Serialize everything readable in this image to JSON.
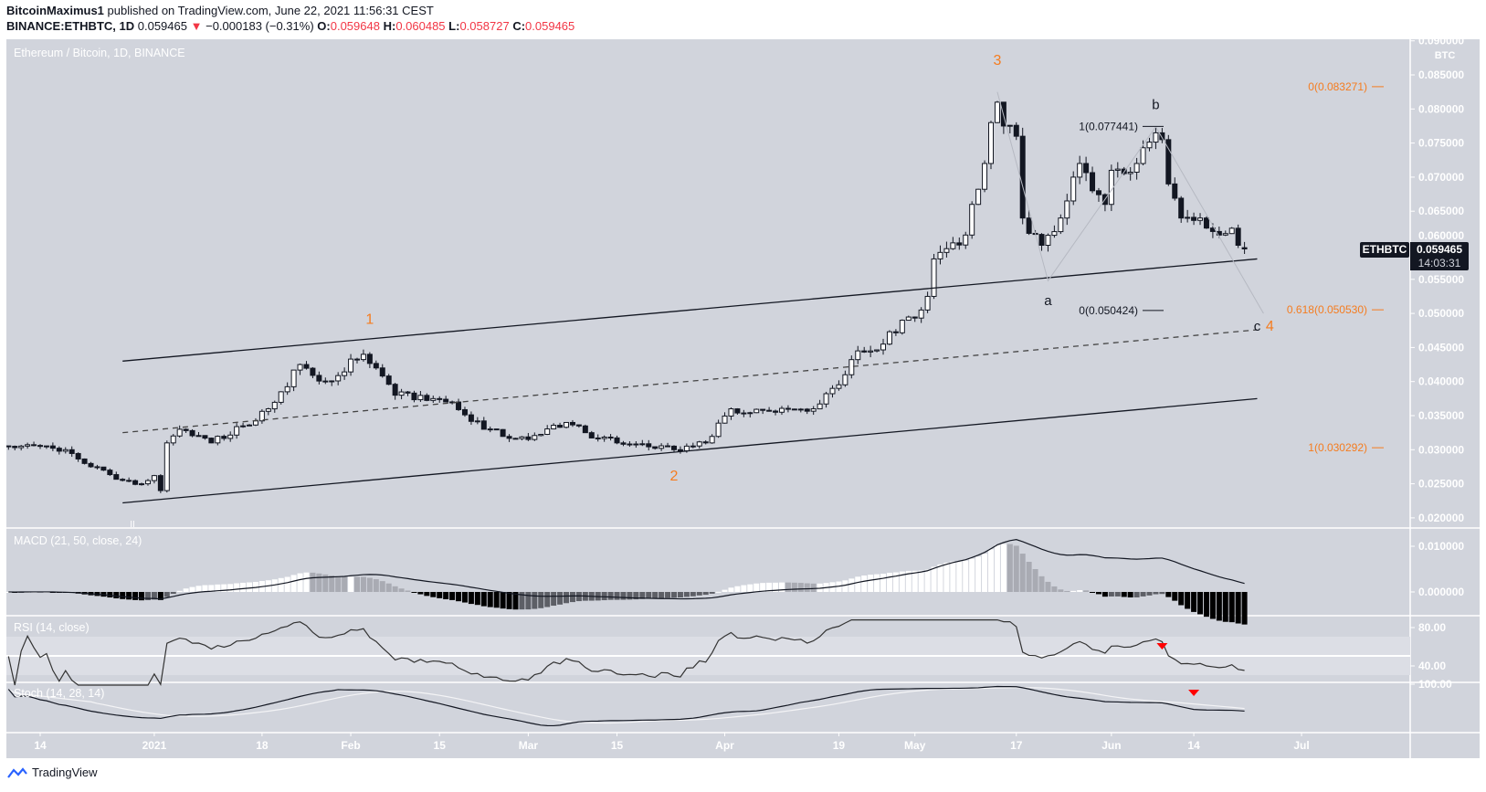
{
  "header": {
    "publisher": "BitcoinMaximus1",
    "published_text": "published on TradingView.com, June 22, 2021 11:56:31 CEST",
    "symbol": "BINANCE:ETHBTC, 1D",
    "last": "0.059465",
    "change": "−0.000183 (−0.31%)",
    "o_label": "O:",
    "o": "0.059648",
    "h_label": "H:",
    "h": "0.060485",
    "l_label": "L:",
    "l": "0.058727",
    "c_label": "C:",
    "c": "0.059465"
  },
  "colors": {
    "background": "#d1d4dc",
    "down": "#131722",
    "up": "#ffffff",
    "accent": "#f57c1f",
    "negative": "#f23645"
  },
  "panes": {
    "main_title": "Ethereum / Bitcoin, 1D, BINANCE",
    "macd_title": "MACD (21, 50, close, 24)",
    "rsi_title": "RSI (14, close)",
    "stoch_title": "Stoch (14, 28, 14)"
  },
  "price_label": {
    "symbol": "ETHBTC",
    "price": "0.059465",
    "countdown": "14:03:31"
  },
  "footer": {
    "brand": "TradingView"
  },
  "chart_data": {
    "type": "candlestick",
    "currency": "BTC",
    "y_ticks": [
      "0.090000",
      "0.085000",
      "0.080000",
      "0.075000",
      "0.070000",
      "0.065000",
      "0.060000",
      "0.055000",
      "0.050000",
      "0.045000",
      "0.040000",
      "0.035000",
      "0.030000",
      "0.025000",
      "0.020000"
    ],
    "ylim": [
      0.019,
      0.091
    ],
    "x_ticks": [
      {
        "date": "2020-12-14",
        "label": "14"
      },
      {
        "date": "2021-01-01",
        "label": "2021"
      },
      {
        "date": "2021-01-18",
        "label": "18"
      },
      {
        "date": "2021-02-01",
        "label": "Feb"
      },
      {
        "date": "2021-02-15",
        "label": "15"
      },
      {
        "date": "2021-03-01",
        "label": "Mar"
      },
      {
        "date": "2021-03-15",
        "label": "15"
      },
      {
        "date": "2021-04-01",
        "label": "Apr"
      },
      {
        "date": "2021-04-19",
        "label": "19"
      },
      {
        "date": "2021-05-01",
        "label": "May"
      },
      {
        "date": "2021-05-17",
        "label": "17"
      },
      {
        "date": "2021-06-01",
        "label": "Jun"
      },
      {
        "date": "2021-06-14",
        "label": "14"
      },
      {
        "date": "2021-07-01",
        "label": "Jul"
      }
    ],
    "approx_closes": [
      [
        "2020-12-09",
        0.0305
      ],
      [
        "2020-12-14",
        0.0305
      ],
      [
        "2020-12-18",
        0.03
      ],
      [
        "2020-12-22",
        0.0275
      ],
      [
        "2020-12-27",
        0.0255
      ],
      [
        "2020-12-30",
        0.025
      ],
      [
        "2021-01-01",
        0.0262
      ],
      [
        "2021-01-02",
        0.024
      ],
      [
        "2021-01-03",
        0.031
      ],
      [
        "2021-01-05",
        0.033
      ],
      [
        "2021-01-10",
        0.031
      ],
      [
        "2021-01-15",
        0.0335
      ],
      [
        "2021-01-19",
        0.036
      ],
      [
        "2021-01-21",
        0.0385
      ],
      [
        "2021-01-24",
        0.0425
      ],
      [
        "2021-01-28",
        0.04
      ],
      [
        "2021-02-03",
        0.044
      ],
      [
        "2021-02-05",
        0.042
      ],
      [
        "2021-02-08",
        0.038
      ],
      [
        "2021-02-14",
        0.0375
      ],
      [
        "2021-02-17",
        0.037
      ],
      [
        "2021-02-22",
        0.033
      ],
      [
        "2021-03-01",
        0.0315
      ],
      [
        "2021-03-07",
        0.034
      ],
      [
        "2021-03-10",
        0.0325
      ],
      [
        "2021-03-15",
        0.031
      ],
      [
        "2021-03-24",
        0.03
      ],
      [
        "2021-03-29",
        0.031
      ],
      [
        "2021-04-02",
        0.036
      ],
      [
        "2021-04-09",
        0.0355
      ],
      [
        "2021-04-15",
        0.036
      ],
      [
        "2021-04-18",
        0.039
      ],
      [
        "2021-04-20",
        0.041
      ],
      [
        "2021-04-22",
        0.0445
      ],
      [
        "2021-04-26",
        0.0455
      ],
      [
        "2021-04-29",
        0.049
      ],
      [
        "2021-05-02",
        0.0505
      ],
      [
        "2021-05-03",
        0.0525
      ],
      [
        "2021-05-04",
        0.058
      ],
      [
        "2021-05-06",
        0.0595
      ],
      [
        "2021-05-09",
        0.0615
      ],
      [
        "2021-05-10",
        0.066
      ],
      [
        "2021-05-12",
        0.072
      ],
      [
        "2021-05-13",
        0.078
      ],
      [
        "2021-05-14",
        0.081
      ],
      [
        "2021-05-15",
        0.0775
      ],
      [
        "2021-05-17",
        0.076
      ],
      [
        "2021-05-18",
        0.064
      ],
      [
        "2021-05-21",
        0.06
      ],
      [
        "2021-05-23",
        0.062
      ],
      [
        "2021-05-24",
        0.064
      ],
      [
        "2021-05-26",
        0.07
      ],
      [
        "2021-05-27",
        0.072
      ],
      [
        "2021-05-29",
        0.068
      ],
      [
        "2021-05-31",
        0.066
      ],
      [
        "2021-06-01",
        0.071
      ],
      [
        "2021-06-05",
        0.072
      ],
      [
        "2021-06-08",
        0.0765
      ],
      [
        "2021-06-09",
        0.0755
      ],
      [
        "2021-06-10",
        0.069
      ],
      [
        "2021-06-12",
        0.064
      ],
      [
        "2021-06-15",
        0.064
      ],
      [
        "2021-06-18",
        0.0615
      ],
      [
        "2021-06-20",
        0.0625
      ],
      [
        "2021-06-21",
        0.06
      ],
      [
        "2021-06-22",
        0.059465
      ]
    ],
    "channel": {
      "upper": [
        [
          "2020-12-27",
          0.043
        ],
        [
          "2021-06-24",
          0.058
        ]
      ],
      "middle_dashed": [
        [
          "2020-12-27",
          0.0325
        ],
        [
          "2021-06-24",
          0.0476
        ]
      ],
      "lower": [
        [
          "2020-12-27",
          0.0222
        ],
        [
          "2021-06-24",
          0.0375
        ]
      ]
    },
    "abc_path": [
      [
        "2021-05-14",
        0.0825
      ],
      [
        "2021-05-22",
        0.0548
      ],
      [
        "2021-06-08",
        0.0774
      ],
      [
        "2021-06-25",
        0.05
      ]
    ],
    "wave_labels": [
      {
        "text": "1",
        "date": "2021-02-04",
        "price": 0.0485,
        "color": "orange"
      },
      {
        "text": "2",
        "date": "2021-03-24",
        "price": 0.0255,
        "color": "orange"
      },
      {
        "text": "3",
        "date": "2021-05-14",
        "price": 0.0865,
        "color": "orange"
      },
      {
        "text": "4",
        "date": "2021-06-26",
        "price": 0.0475,
        "color": "orange"
      },
      {
        "text": "a",
        "date": "2021-05-22",
        "price": 0.0512,
        "color": "black"
      },
      {
        "text": "b",
        "date": "2021-06-08",
        "price": 0.08,
        "color": "black"
      },
      {
        "text": "c",
        "date": "2021-06-24",
        "price": 0.0475,
        "color": "black"
      }
    ],
    "fib_orange": [
      {
        "label": "0(0.083271)",
        "price": 0.083271
      },
      {
        "label": "0.618(0.050530)",
        "price": 0.05053
      },
      {
        "label": "1(0.030292)",
        "price": 0.030292
      }
    ],
    "fib_black": [
      {
        "label": "1(0.077441)",
        "price": 0.077441
      },
      {
        "label": "0(0.050424)",
        "price": 0.050424
      }
    ],
    "macd": {
      "fast": 21,
      "slow": 50,
      "signal": 24,
      "y_ticks": [
        "0.010000",
        "0.000000"
      ]
    },
    "rsi": {
      "length": 14,
      "y_ticks": [
        "80.00",
        "40.00"
      ],
      "bands": [
        30,
        70
      ],
      "midline": 50,
      "signal_date": "2021-06-09"
    },
    "stoch": {
      "k": 14,
      "k_smooth": 28,
      "d": 14,
      "y_ticks": [
        "100.00"
      ],
      "signal_date": "2021-06-14"
    }
  }
}
